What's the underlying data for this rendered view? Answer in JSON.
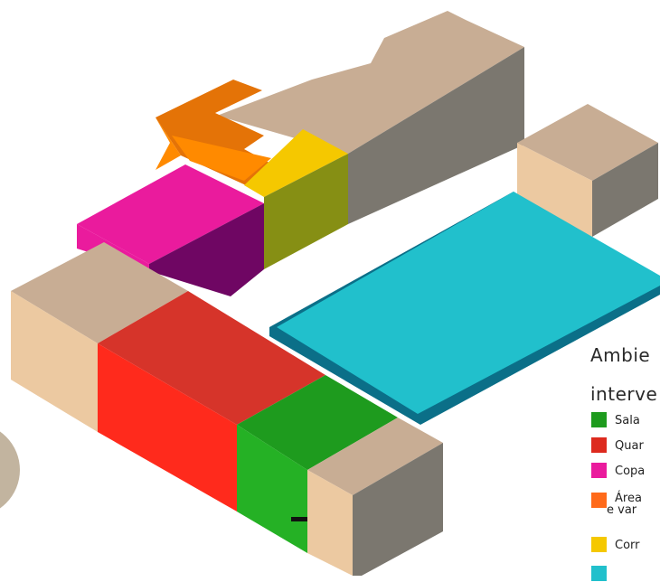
{
  "legend": {
    "title_line1": "Ambie",
    "title_line2": "interve",
    "items": [
      {
        "label": "Sala",
        "color": "#1e9b1e"
      },
      {
        "label": "Quar",
        "color": "#dd2a1e"
      },
      {
        "label": "Copa",
        "color": "#ea1b9d"
      },
      {
        "label": "Área",
        "label_line2": "e var",
        "color": "#ff6a1a"
      },
      {
        "label": "Corr",
        "color": "#f5c800"
      },
      {
        "label": "",
        "color": "#21c0cc"
      }
    ]
  },
  "colors": {
    "beige_top": "#c8ad94",
    "beige_front": "#ecc9a1",
    "gray_side": "#7b776f",
    "red_top": "#d6342a",
    "red_front": "#ff2a1c",
    "green_top": "#1e9b1e",
    "green_front": "#25b125",
    "pink_top": "#ea1b9d",
    "purple_side": "#6f0663",
    "orange_top": "#e47307",
    "orange_light": "#ff8a00",
    "yellow_top": "#f5c800",
    "olive_front": "#868f14",
    "cyan_top": "#21c0cc",
    "cyan_edge": "#0b6f88",
    "blob": "#c2b49f"
  }
}
